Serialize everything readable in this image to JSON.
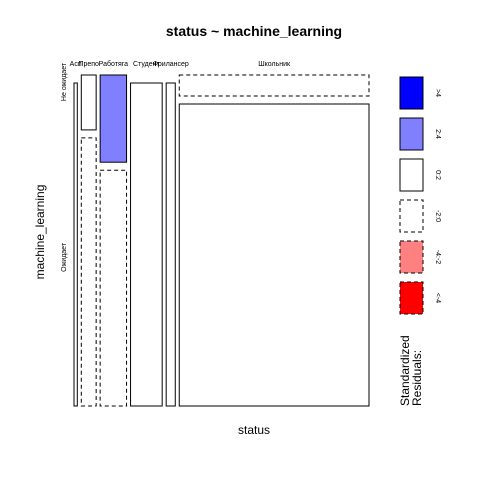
{
  "chart_data": {
    "type": "mosaic",
    "title": "status ~ machine_learning",
    "xlabel": "status",
    "ylabel": "machine_learning",
    "x_categories": [
      "Аспирант",
      "Преподаватель",
      "Работяга",
      "Студент",
      "Фрилансер",
      "Школьник"
    ],
    "x_category_labels": [
      "Асп",
      "Препо",
      "Работяга",
      "Студент",
      "Фрилансер",
      "Школьник"
    ],
    "y_categories": [
      "Не ожидает",
      "Ожидает"
    ],
    "y_category_labels": [
      "Не ожидает",
      "Ожидает"
    ],
    "column_shares": [
      0.012,
      0.054,
      0.096,
      0.115,
      0.033,
      0.69
    ],
    "cells": [
      {
        "x": "Аспирант",
        "y": "Не ожидает",
        "share": 0.0,
        "residual_class": "0:2"
      },
      {
        "x": "Аспирант",
        "y": "Ожидает",
        "share": 1.0,
        "residual_class": "0:2"
      },
      {
        "x": "Преподаватель",
        "y": "Не ожидает",
        "share": 0.17,
        "residual_class": "0:2"
      },
      {
        "x": "Преподаватель",
        "y": "Ожидает",
        "share": 0.83,
        "residual_class": "-2:0"
      },
      {
        "x": "Работяга",
        "y": "Не ожидает",
        "share": 0.27,
        "residual_class": "2:4"
      },
      {
        "x": "Работяга",
        "y": "Ожидает",
        "share": 0.73,
        "residual_class": "-2:0"
      },
      {
        "x": "Студент",
        "y": "Не ожидает",
        "share": 0.0,
        "residual_class": "-2:0"
      },
      {
        "x": "Студент",
        "y": "Ожидает",
        "share": 1.0,
        "residual_class": "0:2"
      },
      {
        "x": "Фрилансер",
        "y": "Не ожидает",
        "share": 0.0,
        "residual_class": "0:2"
      },
      {
        "x": "Фрилансер",
        "y": "Ожидает",
        "share": 1.0,
        "residual_class": "0:2"
      },
      {
        "x": "Школьник",
        "y": "Не ожидает",
        "share": 0.065,
        "residual_class": "-2:0"
      },
      {
        "x": "Школьник",
        "y": "Ожидает",
        "share": 0.935,
        "residual_class": "0:2"
      }
    ],
    "legend": {
      "title_lines": [
        "Standardized",
        "Residuals:"
      ],
      "placement": "right",
      "entries": [
        {
          "label": ">4",
          "class": ">4",
          "color": "#0000ff",
          "dashed": false
        },
        {
          "label": "2:4",
          "class": "2:4",
          "color": "#8080ff",
          "dashed": false
        },
        {
          "label": "0:2",
          "class": "0:2",
          "color": "#ffffff",
          "dashed": false
        },
        {
          "label": "-2:0",
          "class": "-2:0",
          "color": "#ffffff",
          "dashed": true
        },
        {
          "label": "-4:-2",
          "class": "-4:-2",
          "color": "#ff8080",
          "dashed": true
        },
        {
          "label": "<-4",
          "class": "<-4",
          "color": "#ff0000",
          "dashed": true
        }
      ]
    }
  }
}
